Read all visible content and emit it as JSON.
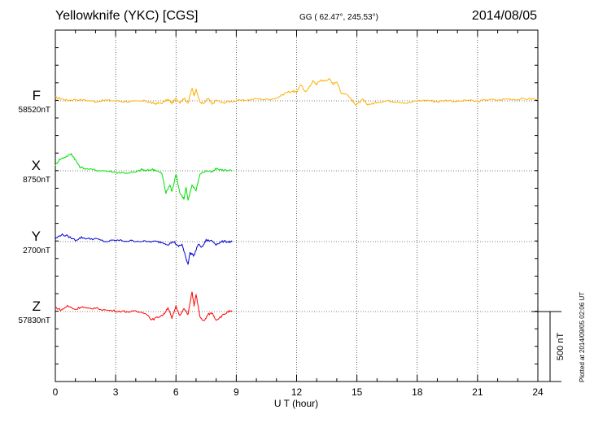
{
  "header": {
    "title": "Yellowknife (YKC)  [CGS]",
    "coords": "GG ( 62.47°, 245.53°)",
    "date": "2014/08/05"
  },
  "footer": {
    "plotted": "Plotted at 2014/09/05 02:06 UT"
  },
  "chart_data": {
    "type": "line",
    "xlabel": "U T (hour)",
    "xlim": [
      0,
      24
    ],
    "xticks": [
      "0",
      "3",
      "6",
      "9",
      "12",
      "15",
      "18",
      "21",
      "24"
    ],
    "scale_bar_label": "500 nT",
    "series": [
      {
        "name": "F",
        "baseline_label": "58520nT",
        "color": "#ffb000",
        "x": [
          0,
          0.3,
          0.6,
          1,
          1.5,
          2,
          2.5,
          3,
          3.5,
          4,
          4.5,
          4.8,
          5,
          5.3,
          5.6,
          5.8,
          6,
          6.2,
          6.4,
          6.6,
          6.8,
          6.9,
          7,
          7.2,
          7.4,
          7.6,
          7.8,
          8,
          8.3,
          8.6,
          9,
          9.5,
          10,
          10.5,
          11,
          11.5,
          11.8,
          12,
          12.2,
          12.4,
          12.6,
          12.8,
          13,
          13.2,
          13.4,
          13.6,
          13.8,
          14,
          14.2,
          14.5,
          14.7,
          14.9,
          15.1,
          15.3,
          15.5,
          15.8,
          16,
          16.5,
          17,
          17.5,
          18,
          18.5,
          19,
          19.5,
          20,
          20.5,
          21,
          21.5,
          22,
          22.5,
          23,
          23.5,
          24
        ],
        "y": [
          25,
          15,
          5,
          10,
          5,
          -5,
          5,
          0,
          -5,
          -5,
          0,
          -15,
          -20,
          -15,
          10,
          -15,
          15,
          -10,
          20,
          -15,
          90,
          40,
          80,
          -10,
          -20,
          20,
          -25,
          5,
          -15,
          -5,
          0,
          5,
          15,
          10,
          20,
          60,
          70,
          60,
          120,
          65,
          90,
          140,
          120,
          150,
          140,
          160,
          120,
          140,
          60,
          50,
          15,
          -25,
          -15,
          10,
          -25,
          -20,
          -10,
          0,
          -5,
          -15,
          0,
          5,
          -5,
          5,
          -5,
          5,
          -5,
          10,
          5,
          15,
          10,
          15,
          10
        ]
      },
      {
        "name": "X",
        "baseline_label": "8750nT",
        "color": "#00e000",
        "x": [
          0,
          0.2,
          0.5,
          0.8,
          1,
          1.2,
          1.5,
          2,
          2.5,
          3,
          3.5,
          4,
          4.3,
          4.5,
          4.8,
          5,
          5.3,
          5.5,
          5.7,
          5.8,
          6,
          6.2,
          6.4,
          6.5,
          6.6,
          6.8,
          7,
          7.2,
          7.5,
          7.8,
          8,
          8.3,
          8.6,
          8.8
        ],
        "y": [
          40,
          80,
          100,
          120,
          80,
          30,
          15,
          5,
          0,
          -10,
          -15,
          -10,
          10,
          0,
          10,
          5,
          -20,
          -160,
          -100,
          -150,
          -20,
          -160,
          -200,
          -120,
          -210,
          -100,
          -140,
          -20,
          0,
          -10,
          15,
          5,
          5,
          0
        ],
        "xmax_plot": 8.8
      },
      {
        "name": "Y",
        "baseline_label": "2700nT",
        "color": "#0000d0",
        "x": [
          0,
          0.3,
          0.6,
          1,
          1.3,
          1.6,
          2,
          2.5,
          3,
          3.5,
          4,
          4.5,
          5,
          5.3,
          5.6,
          5.9,
          6.1,
          6.3,
          6.5,
          6.6,
          6.7,
          6.9,
          7.1,
          7.3,
          7.5,
          7.8,
          8,
          8.3,
          8.6,
          8.8
        ],
        "y": [
          20,
          50,
          40,
          10,
          30,
          20,
          20,
          0,
          10,
          5,
          5,
          0,
          0,
          -5,
          -20,
          0,
          -35,
          -20,
          -120,
          -160,
          -80,
          -100,
          -20,
          -40,
          10,
          5,
          -20,
          0,
          0,
          0
        ],
        "xmax_plot": 8.8
      },
      {
        "name": "Z",
        "baseline_label": "57830nT",
        "color": "#ff0000",
        "x": [
          0,
          0.3,
          0.6,
          1,
          1.3,
          1.6,
          2,
          2.5,
          3,
          3.5,
          4,
          4.5,
          4.8,
          5.1,
          5.4,
          5.6,
          5.8,
          6,
          6.2,
          6.4,
          6.6,
          6.7,
          6.8,
          6.9,
          7,
          7.2,
          7.4,
          7.6,
          7.8,
          8,
          8.3,
          8.6,
          8.8
        ],
        "y": [
          30,
          10,
          40,
          15,
          35,
          20,
          25,
          10,
          5,
          0,
          0,
          -10,
          -60,
          -40,
          -20,
          30,
          -50,
          40,
          -30,
          20,
          -20,
          60,
          140,
          40,
          120,
          -40,
          -70,
          -20,
          -10,
          -60,
          -30,
          0,
          0
        ],
        "xmax_plot": 8.8
      }
    ]
  }
}
